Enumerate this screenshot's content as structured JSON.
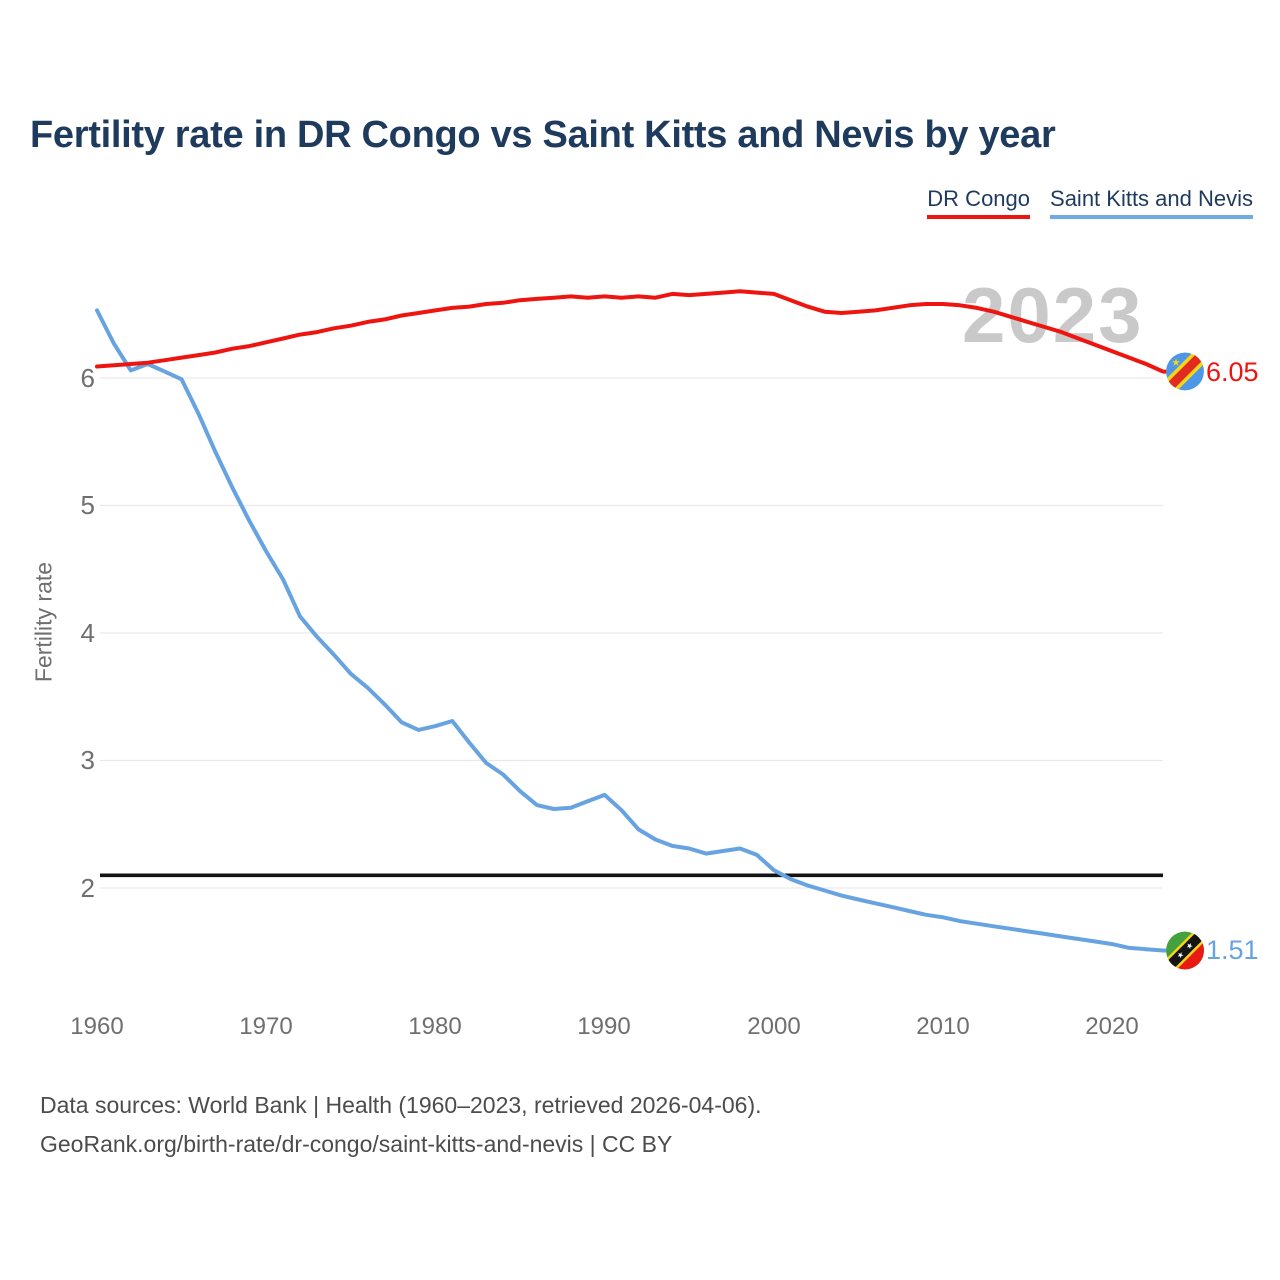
{
  "header": {
    "title": "Fertility rate in DR Congo vs Saint Kitts and Nevis by year"
  },
  "legend": {
    "items": [
      {
        "label": "DR Congo",
        "color": "#ee1511"
      },
      {
        "label": "Saint Kitts and Nevis",
        "color": "#6fabe7"
      }
    ]
  },
  "watermark": "2023",
  "footer": {
    "line1": "Data sources: World Bank | Health (1960–2023, retrieved 2026-04-06).",
    "line2": "GeoRank.org/birth-rate/dr-congo/saint-kitts-and-nevis | CC BY"
  },
  "icons": {
    "dr_congo_flag": {
      "blue": "#4e97e7",
      "yellow": "#f7d618",
      "red": "#e02c1e"
    },
    "saint_kitts_flag": {
      "green": "#44a13d",
      "yellow": "#f7d618",
      "black": "#151515",
      "red": "#e81b13",
      "white": "#ffffff"
    }
  },
  "chart_data": {
    "type": "line",
    "title": "Fertility rate in DR Congo vs Saint Kitts and Nevis by year",
    "xlabel": "",
    "ylabel": "Fertility rate",
    "grid": true,
    "legend_position": "top-right",
    "x_range": [
      1960,
      2023
    ],
    "ylim": [
      1.3,
      6.9
    ],
    "x_ticks": [
      "1960",
      "1970",
      "1980",
      "1990",
      "2000",
      "2010",
      "2020"
    ],
    "y_ticks": [
      "6",
      "5",
      "4",
      "3",
      "2"
    ],
    "y_tick_values": [
      6,
      5,
      4,
      3,
      2
    ],
    "reference_line": {
      "value": 2.1,
      "color": "#141414"
    },
    "end_labels": {
      "dr_congo": "6.05",
      "saint_kitts": "1.51"
    },
    "series": [
      {
        "name": "DR Congo",
        "color": "#ee1511",
        "values": [
          6.09,
          6.1,
          6.11,
          6.12,
          6.14,
          6.16,
          6.18,
          6.2,
          6.23,
          6.25,
          6.28,
          6.31,
          6.34,
          6.36,
          6.39,
          6.41,
          6.44,
          6.46,
          6.49,
          6.51,
          6.53,
          6.55,
          6.56,
          6.58,
          6.59,
          6.61,
          6.62,
          6.63,
          6.64,
          6.63,
          6.64,
          6.63,
          6.64,
          6.63,
          6.66,
          6.65,
          6.66,
          6.67,
          6.68,
          6.67,
          6.66,
          6.61,
          6.56,
          6.52,
          6.51,
          6.52,
          6.53,
          6.55,
          6.57,
          6.58,
          6.58,
          6.57,
          6.55,
          6.52,
          6.48,
          6.44,
          6.4,
          6.36,
          6.31,
          6.26,
          6.21,
          6.16,
          6.11,
          6.05
        ]
      },
      {
        "name": "Saint Kitts and Nevis",
        "color": "#67a3e0",
        "values": [
          6.53,
          6.27,
          6.06,
          6.11,
          6.05,
          5.99,
          5.72,
          5.42,
          5.14,
          4.88,
          4.64,
          4.42,
          4.13,
          3.97,
          3.83,
          3.68,
          3.57,
          3.44,
          3.3,
          3.24,
          3.27,
          3.31,
          3.14,
          2.98,
          2.89,
          2.76,
          2.65,
          2.62,
          2.63,
          2.68,
          2.73,
          2.61,
          2.46,
          2.38,
          2.33,
          2.31,
          2.27,
          2.29,
          2.31,
          2.26,
          2.14,
          2.07,
          2.02,
          1.98,
          1.94,
          1.91,
          1.88,
          1.85,
          1.82,
          1.79,
          1.77,
          1.74,
          1.72,
          1.7,
          1.68,
          1.66,
          1.64,
          1.62,
          1.6,
          1.58,
          1.56,
          1.53,
          1.52,
          1.51
        ]
      }
    ]
  }
}
